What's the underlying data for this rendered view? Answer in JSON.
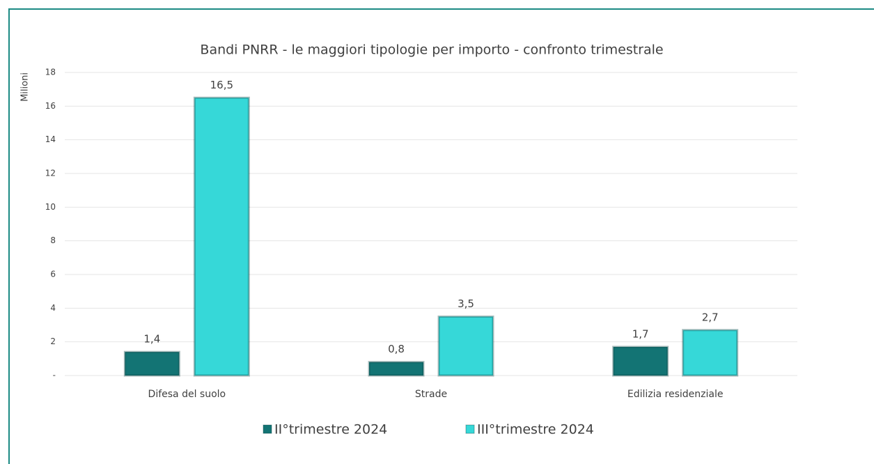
{
  "chart_data": {
    "type": "bar",
    "title": "Bandi PNRR - le maggiori tipologie per importo - confronto trimestrale",
    "y_axis_label": "Milioni",
    "categories": [
      "Difesa del suolo",
      "Strade",
      "Edilizia residenziale"
    ],
    "series": [
      {
        "name": "II°trimestre 2024",
        "color": "#137474",
        "values": [
          1.4,
          0.8,
          1.7
        ],
        "value_labels": [
          "1,4",
          "0,8",
          "1,7"
        ]
      },
      {
        "name": "III°trimestre 2024",
        "color": "#36d8d8",
        "values": [
          16.5,
          3.5,
          2.7
        ],
        "value_labels": [
          "16,5",
          "3,5",
          "2,7"
        ]
      }
    ],
    "ylim": [
      0,
      18
    ],
    "yticks": [
      {
        "value": 0,
        "label": "-"
      },
      2,
      4,
      6,
      8,
      10,
      12,
      14,
      16,
      18
    ],
    "grid": true,
    "legend": "bottom"
  }
}
